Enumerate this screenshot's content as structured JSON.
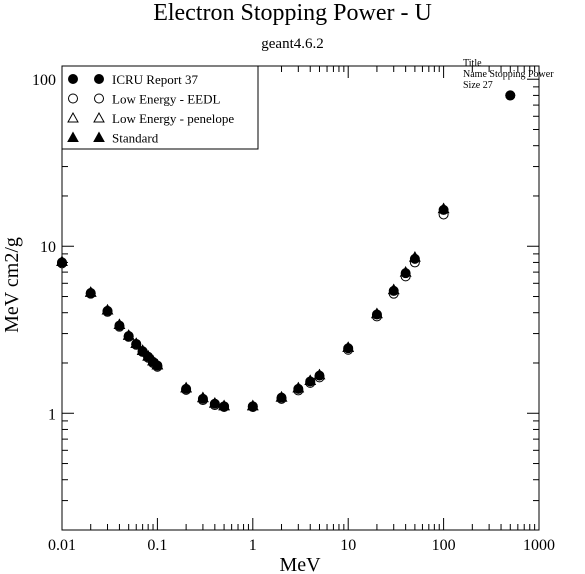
{
  "chart_data": {
    "type": "scatter",
    "title": "Electron Stopping Power - U",
    "subtitle": "geant4.6.2",
    "xlabel": "MeV",
    "ylabel": "MeV cm2/g",
    "x_scale": "log",
    "y_scale": "log",
    "xlim": [
      0.01,
      1000
    ],
    "ylim": [
      0.2,
      120
    ],
    "x_ticks": [
      "0.01",
      "0.1",
      "1",
      "10",
      "100",
      "1000"
    ],
    "y_ticks": [
      "1",
      "10",
      "100"
    ],
    "legend_position": "top-left",
    "stats_box": [
      "Title",
      "Name  Stopping Power",
      "Size  27"
    ],
    "series": [
      {
        "name": "ICRU Report 37",
        "marker": "filled-circle",
        "x": [
          0.01,
          0.02,
          0.03,
          0.04,
          0.05,
          0.06,
          0.07,
          0.08,
          0.09,
          0.1,
          0.2,
          0.3,
          0.4,
          0.5,
          1,
          2,
          3,
          4,
          5,
          10,
          20,
          30,
          40,
          50,
          100,
          500
        ],
        "y": [
          8.0,
          5.25,
          4.1,
          3.35,
          2.9,
          2.6,
          2.35,
          2.18,
          2.03,
          1.93,
          1.4,
          1.22,
          1.14,
          1.1,
          1.1,
          1.24,
          1.4,
          1.55,
          1.68,
          2.45,
          3.9,
          5.4,
          6.9,
          8.4,
          16.5,
          80
        ]
      },
      {
        "name": "Low Energy - EEDL",
        "marker": "open-circle",
        "x": [
          0.01,
          0.02,
          0.03,
          0.04,
          0.05,
          0.06,
          0.07,
          0.08,
          0.09,
          0.1,
          0.2,
          0.3,
          0.4,
          0.5,
          1,
          2,
          3,
          4,
          5,
          10,
          20,
          30,
          40,
          50,
          100,
          500
        ],
        "y": [
          7.9,
          5.2,
          4.05,
          3.3,
          2.87,
          2.57,
          2.33,
          2.15,
          2.0,
          1.9,
          1.38,
          1.2,
          1.12,
          1.09,
          1.09,
          1.22,
          1.37,
          1.52,
          1.64,
          2.4,
          3.8,
          5.2,
          6.6,
          8.0,
          15.5,
          80
        ]
      },
      {
        "name": "Low Energy - penelope",
        "marker": "open-triangle",
        "x": [
          0.01,
          0.02,
          0.03,
          0.04,
          0.05,
          0.06,
          0.07,
          0.08,
          0.09,
          0.1,
          0.2,
          0.3,
          0.4,
          0.5,
          1,
          2,
          3,
          4,
          5,
          10,
          20,
          30,
          40,
          50,
          100
        ],
        "y": [
          8.1,
          5.3,
          4.15,
          3.4,
          2.93,
          2.62,
          2.38,
          2.2,
          2.06,
          1.95,
          1.42,
          1.24,
          1.15,
          1.11,
          1.11,
          1.25,
          1.42,
          1.57,
          1.7,
          2.48,
          3.95,
          5.5,
          7.0,
          8.6,
          16.8
        ]
      },
      {
        "name": "Standard",
        "marker": "filled-triangle",
        "x": [
          0.01,
          0.02,
          0.03,
          0.04,
          0.05,
          0.06,
          0.07,
          0.08,
          0.09,
          0.1,
          0.2,
          0.3,
          0.4,
          0.5,
          1,
          2,
          3,
          4,
          5,
          10,
          20,
          30,
          40,
          50,
          100
        ],
        "y": [
          8.1,
          5.3,
          4.15,
          3.4,
          2.93,
          2.62,
          2.38,
          2.2,
          2.06,
          1.95,
          1.42,
          1.24,
          1.15,
          1.11,
          1.11,
          1.25,
          1.42,
          1.57,
          1.7,
          2.48,
          3.95,
          5.5,
          7.0,
          8.6,
          16.8
        ]
      }
    ]
  }
}
